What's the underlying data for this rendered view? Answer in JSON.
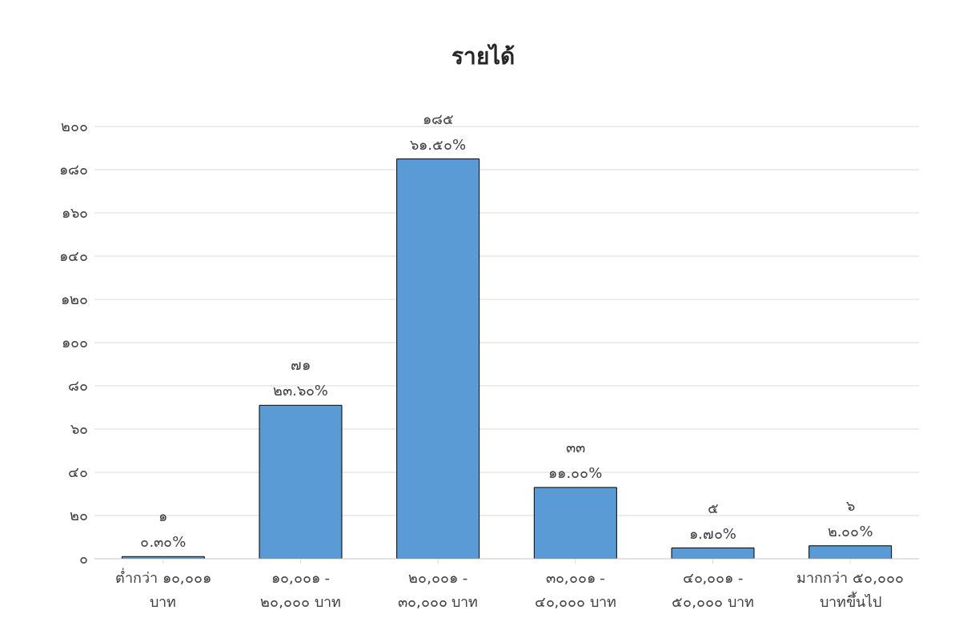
{
  "chart_data": {
    "type": "bar",
    "title": "รายได้",
    "categories": [
      "ต่ำกว่า ๑๐,๐๐๑ บาท",
      "๑๐,๐๐๑ - ๒๐,๐๐๐ บาท",
      "๒๐,๐๐๑ - ๓๐,๐๐๐ บาท",
      "๓๐,๐๐๑ - ๔๐,๐๐๐ บาท",
      "๔๐,๐๐๑ - ๕๐,๐๐๐ บาท",
      "มากกว่า ๕๐,๐๐๐ บาทขึ้นไป"
    ],
    "values": [
      1,
      71,
      185,
      33,
      5,
      6
    ],
    "color": "#5b9bd5",
    "value_labels": [
      "๑\n๐.๓๐%",
      "๗๑\n๒๓.๖๐%",
      "๑๘๕\n๖๑.๕๐%",
      "๓๓\n๑๑.๐๐%",
      "๕\n๑.๗๐%",
      "๖\n๒.๐๐%"
    ],
    "ylim": [
      0,
      200
    ],
    "yticks": [
      {
        "value": 0,
        "label": "๐"
      },
      {
        "value": 20,
        "label": "๒๐"
      },
      {
        "value": 40,
        "label": "๔๐"
      },
      {
        "value": 60,
        "label": "๖๐"
      },
      {
        "value": 80,
        "label": "๘๐"
      },
      {
        "value": 100,
        "label": "๑๐๐"
      },
      {
        "value": 120,
        "label": "๑๒๐"
      },
      {
        "value": 140,
        "label": "๑๔๐"
      },
      {
        "value": 160,
        "label": "๑๖๐"
      },
      {
        "value": 180,
        "label": "๑๘๐"
      },
      {
        "value": 200,
        "label": "๒๐๐"
      }
    ],
    "grid": "y"
  }
}
